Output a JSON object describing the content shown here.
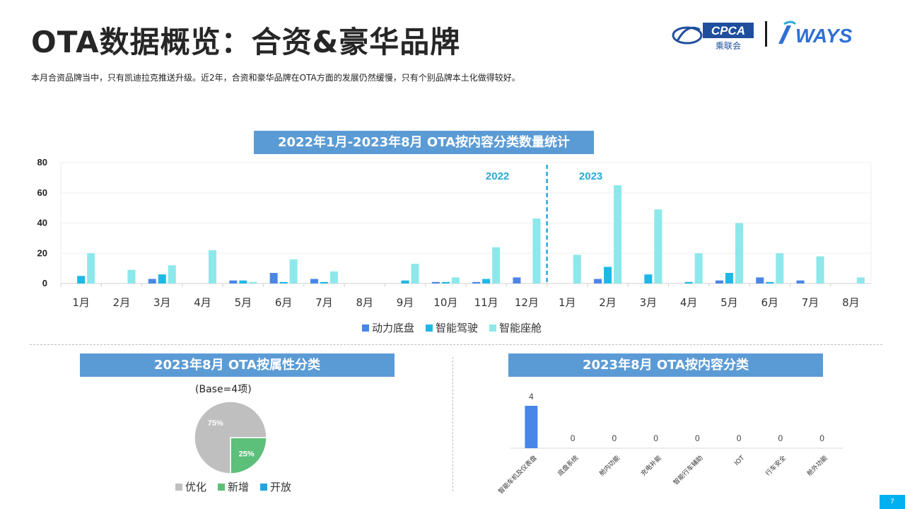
{
  "header": {
    "title": "OTA数据概览：合资&豪华品牌",
    "subtitle": "本月合资品牌当中，只有凯迪拉克推送升级。近2年，合资和豪华品牌在OTA方面的发展仍然缓慢，只有个别品牌本土化做得较好。",
    "logo_cpca_text": "CPCA",
    "logo_cpca_sub": "乘联会",
    "logo_ways_text": "WAYS"
  },
  "colors": {
    "power_chassis": "#4a86e8",
    "smart_driving": "#1fb8e6",
    "smart_cabin": "#8ce8ea",
    "banner": "#5b9bd5",
    "pie_optimize": "#bfbfbf",
    "pie_new": "#5cbf7a",
    "pie_open": "#1fa5e0",
    "bar_content": "#4a86e8",
    "year_label": "#29a8d8"
  },
  "chart_data": [
    {
      "type": "bar",
      "title": "2022年1月-2023年8月 OTA按内容分类数量统计",
      "categories": [
        "1月",
        "2月",
        "3月",
        "4月",
        "5月",
        "6月",
        "7月",
        "8月",
        "9月",
        "10月",
        "11月",
        "12月",
        "1月",
        "2月",
        "3月",
        "4月",
        "5月",
        "6月",
        "7月",
        "8月"
      ],
      "series": [
        {
          "name": "动力底盘",
          "values": [
            0,
            0,
            3,
            0,
            2,
            7,
            3,
            0,
            0,
            1,
            1,
            4,
            0,
            3,
            0,
            0,
            2,
            4,
            2,
            0
          ]
        },
        {
          "name": "智能驾驶",
          "values": [
            5,
            0,
            6,
            0,
            2,
            1,
            1,
            0,
            2,
            1,
            3,
            0,
            0,
            11,
            6,
            1,
            7,
            1,
            0,
            0
          ]
        },
        {
          "name": "智能座舱",
          "values": [
            20,
            9,
            12,
            22,
            1,
            16,
            8,
            0,
            13,
            4,
            24,
            43,
            19,
            65,
            49,
            20,
            40,
            20,
            18,
            4
          ]
        }
      ],
      "ylim": [
        0,
        80
      ],
      "yticks": [
        0,
        20,
        40,
        60,
        80
      ],
      "year_labels": [
        "2022",
        "2023"
      ],
      "legend": "bottom"
    },
    {
      "type": "pie",
      "title": "2023年8月 OTA按属性分类",
      "base_label": "(Base=4项)",
      "slices": [
        {
          "name": "优化",
          "value": 75,
          "label": "75%"
        },
        {
          "name": "新增",
          "value": 25,
          "label": "25%"
        },
        {
          "name": "开放",
          "value": 0,
          "label": ""
        }
      ],
      "legend": "bottom"
    },
    {
      "type": "bar",
      "title": "2023年8月 OTA按内容分类",
      "categories": [
        "智能车机及仪表盘",
        "底盘系统",
        "舱内功能",
        "充电补能",
        "智能行车辅助",
        "IOT",
        "行车安全",
        "舱外功能"
      ],
      "values": [
        4,
        0,
        0,
        0,
        0,
        0,
        0,
        0
      ]
    }
  ],
  "page_number": "7"
}
